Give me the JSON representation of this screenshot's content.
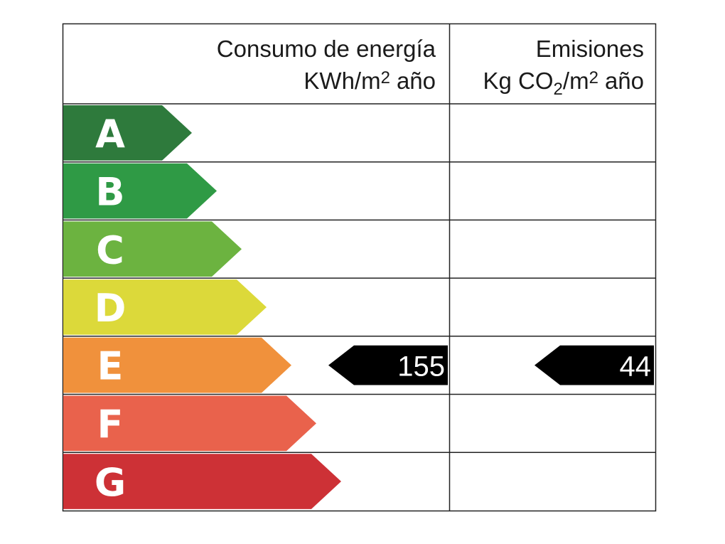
{
  "header": {
    "energy": {
      "title": "Consumo de energía",
      "unit": [
        "KWh/m",
        "2",
        "año"
      ]
    },
    "emissions": {
      "title": "Emisiones",
      "unit": [
        "Kg CO",
        "2",
        "/m",
        "2",
        "año"
      ]
    }
  },
  "scale": [
    {
      "letter": "A",
      "color": "#2e7a3c"
    },
    {
      "letter": "B",
      "color": "#2f9a45"
    },
    {
      "letter": "C",
      "color": "#6cb340"
    },
    {
      "letter": "D",
      "color": "#dcd93a"
    },
    {
      "letter": "E",
      "color": "#f0913c"
    },
    {
      "letter": "F",
      "color": "#e9624c"
    },
    {
      "letter": "G",
      "color": "#cd3136"
    }
  ],
  "result": {
    "rating": "E",
    "energy": 155,
    "emissions": 44
  }
}
